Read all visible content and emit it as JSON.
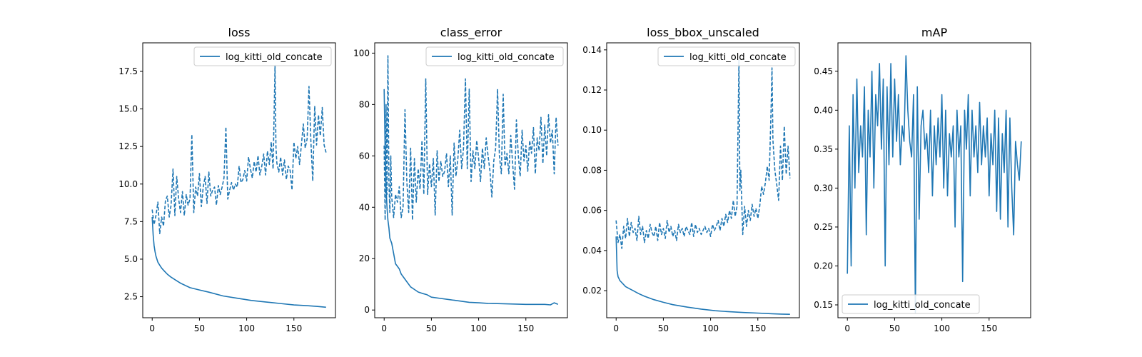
{
  "chart_data": [
    {
      "type": "line",
      "title": "loss",
      "xlabel": "",
      "ylabel": "",
      "xlim": [
        -10,
        194
      ],
      "ylim": [
        1.1,
        19.4
      ],
      "xticks": [
        0,
        50,
        100,
        150
      ],
      "yticks": [
        2.5,
        5.0,
        7.5,
        10.0,
        12.5,
        15.0,
        17.5
      ],
      "ytick_labels": [
        "2.5",
        "5.0",
        "7.5",
        "10.0",
        "12.5",
        "15.0",
        "17.5"
      ],
      "legend": {
        "placement": "top-right",
        "entries": [
          "log_kitti_old_concate"
        ]
      },
      "grid": false,
      "series": [
        {
          "name": "log_kitti_old_concate",
          "style": "solid",
          "x": [
            0,
            1,
            2,
            3,
            4,
            6,
            8,
            10,
            13,
            16,
            20,
            25,
            30,
            40,
            50,
            60,
            75,
            90,
            105,
            120,
            135,
            150,
            165,
            175,
            184
          ],
          "values": [
            7.8,
            6.6,
            5.9,
            5.5,
            5.2,
            4.8,
            4.6,
            4.4,
            4.2,
            4.0,
            3.8,
            3.6,
            3.4,
            3.1,
            2.95,
            2.8,
            2.55,
            2.4,
            2.25,
            2.15,
            2.05,
            1.95,
            1.9,
            1.85,
            1.8
          ]
        },
        {
          "style": "dashed",
          "x": [
            0,
            2,
            4,
            6,
            8,
            10,
            12,
            14,
            16,
            18,
            20,
            22,
            24,
            26,
            28,
            30,
            32,
            34,
            36,
            38,
            40,
            42,
            44,
            46,
            48,
            50,
            52,
            54,
            56,
            58,
            60,
            62,
            64,
            66,
            68,
            70,
            72,
            74,
            76,
            78,
            80,
            82,
            84,
            86,
            88,
            90,
            92,
            94,
            96,
            98,
            100,
            102,
            104,
            106,
            108,
            110,
            112,
            114,
            116,
            118,
            120,
            122,
            124,
            126,
            128,
            130,
            131,
            132,
            134,
            136,
            138,
            140,
            142,
            144,
            146,
            148,
            150,
            152,
            154,
            156,
            158,
            160,
            162,
            164,
            166,
            168,
            170,
            172,
            174,
            176,
            178,
            180,
            182,
            184
          ],
          "values": [
            8.3,
            7.3,
            7.9,
            8.8,
            6.7,
            7.8,
            7.2,
            8.9,
            9.2,
            7.8,
            8.6,
            11.0,
            7.9,
            10.5,
            9.0,
            8.1,
            9.5,
            7.9,
            9.3,
            8.6,
            9.0,
            13.3,
            8.1,
            9.8,
            9.2,
            10.7,
            8.5,
            9.8,
            10.5,
            8.7,
            10.8,
            9.2,
            9.6,
            9.8,
            8.6,
            9.9,
            9.3,
            9.8,
            10.4,
            13.8,
            9.0,
            9.6,
            10.1,
            9.6,
            10.0,
            9.8,
            11.2,
            10.1,
            10.3,
            10.9,
            10.2,
            11.8,
            11.0,
            10.4,
            11.5,
            10.8,
            11.9,
            10.6,
            11.2,
            12.0,
            10.6,
            12.2,
            11.3,
            12.8,
            11.0,
            17.9,
            12.5,
            11.4,
            10.8,
            11.8,
            10.6,
            11.6,
            10.3,
            11.2,
            10.9,
            9.6,
            12.8,
            11.7,
            12.5,
            11.3,
            12.7,
            14.0,
            12.4,
            13.0,
            16.5,
            12.8,
            10.2,
            15.2,
            12.6,
            14.6,
            13.2,
            15.1,
            12.6,
            12.1
          ]
        }
      ]
    },
    {
      "type": "line",
      "title": "class_error",
      "xlabel": "",
      "ylabel": "",
      "xlim": [
        -10,
        194
      ],
      "ylim": [
        -3,
        104
      ],
      "xticks": [
        0,
        50,
        100,
        150
      ],
      "yticks": [
        0,
        20,
        40,
        60,
        80,
        100
      ],
      "ytick_labels": [
        "0",
        "20",
        "40",
        "60",
        "80",
        "100"
      ],
      "legend": {
        "placement": "top-right",
        "entries": [
          "log_kitti_old_concate"
        ]
      },
      "grid": false,
      "series": [
        {
          "name": "log_kitti_old_concate",
          "style": "solid",
          "x": [
            0,
            1,
            2,
            3,
            4,
            5,
            6,
            8,
            10,
            12,
            14,
            16,
            18,
            20,
            24,
            28,
            32,
            36,
            40,
            45,
            50,
            60,
            70,
            80,
            90,
            100,
            110,
            120,
            130,
            140,
            150,
            160,
            170,
            176,
            180,
            184
          ],
          "values": [
            86,
            62,
            48,
            40,
            35,
            32,
            28,
            26,
            22,
            18,
            17,
            16,
            14,
            13,
            11,
            9,
            8,
            7,
            6.5,
            6,
            5,
            4.5,
            4,
            3.5,
            3,
            2.8,
            2.6,
            2.5,
            2.4,
            2.3,
            2.2,
            2.2,
            2.2,
            2.0,
            2.8,
            2.2
          ]
        },
        {
          "style": "dashed",
          "x": [
            0,
            1,
            2,
            3,
            4,
            5,
            6,
            7,
            8,
            9,
            10,
            12,
            14,
            16,
            18,
            20,
            22,
            24,
            26,
            28,
            30,
            32,
            34,
            36,
            38,
            40,
            42,
            44,
            46,
            48,
            50,
            52,
            54,
            56,
            58,
            60,
            62,
            64,
            66,
            68,
            70,
            72,
            74,
            76,
            78,
            80,
            82,
            84,
            86,
            88,
            90,
            92,
            94,
            96,
            98,
            100,
            102,
            104,
            106,
            108,
            110,
            112,
            114,
            116,
            118,
            120,
            122,
            124,
            126,
            128,
            130,
            132,
            134,
            136,
            138,
            140,
            142,
            144,
            146,
            148,
            150,
            152,
            154,
            156,
            158,
            160,
            162,
            164,
            166,
            168,
            170,
            172,
            174,
            176,
            178,
            180,
            182,
            184
          ],
          "values": [
            64,
            35,
            80,
            45,
            99,
            50,
            38,
            60,
            44,
            40,
            36,
            45,
            42,
            48,
            36,
            40,
            78,
            50,
            38,
            63,
            35,
            59,
            42,
            55,
            47,
            66,
            45,
            90,
            45,
            57,
            48,
            59,
            37,
            62,
            50,
            58,
            52,
            54,
            61,
            48,
            60,
            37,
            65,
            52,
            59,
            70,
            55,
            63,
            90,
            55,
            86,
            50,
            62,
            55,
            66,
            59,
            50,
            63,
            55,
            67,
            60,
            54,
            44,
            58,
            63,
            86,
            60,
            53,
            84,
            56,
            61,
            53,
            68,
            57,
            47,
            74,
            60,
            52,
            70,
            58,
            64,
            54,
            66,
            61,
            71,
            53,
            67,
            62,
            75,
            57,
            72,
            60,
            76,
            65,
            70,
            53,
            75,
            64
          ]
        }
      ]
    },
    {
      "type": "line",
      "title": "loss_bbox_unscaled",
      "xlabel": "",
      "ylabel": "",
      "xlim": [
        -10,
        194
      ],
      "ylim": [
        0.0065,
        0.1435
      ],
      "xticks": [
        0,
        50,
        100,
        150
      ],
      "yticks": [
        0.02,
        0.04,
        0.06,
        0.08,
        0.1,
        0.12,
        0.14
      ],
      "ytick_labels": [
        "0.02",
        "0.04",
        "0.06",
        "0.08",
        "0.10",
        "0.12",
        "0.14"
      ],
      "legend": {
        "placement": "top-right",
        "entries": [
          "log_kitti_old_concate"
        ]
      },
      "grid": false,
      "series": [
        {
          "name": "log_kitti_old_concate",
          "style": "solid",
          "x": [
            0,
            1,
            2,
            3,
            4,
            6,
            8,
            10,
            14,
            18,
            24,
            30,
            40,
            50,
            60,
            75,
            90,
            105,
            120,
            135,
            150,
            165,
            175,
            184
          ],
          "values": [
            0.047,
            0.03,
            0.027,
            0.026,
            0.025,
            0.024,
            0.023,
            0.022,
            0.021,
            0.02,
            0.0185,
            0.0172,
            0.0155,
            0.0142,
            0.013,
            0.0118,
            0.0108,
            0.01,
            0.0095,
            0.0091,
            0.0088,
            0.0085,
            0.0083,
            0.0082
          ]
        },
        {
          "style": "dashed",
          "x": [
            0,
            2,
            4,
            6,
            8,
            10,
            12,
            14,
            16,
            18,
            20,
            22,
            24,
            26,
            28,
            30,
            32,
            34,
            36,
            38,
            40,
            42,
            44,
            46,
            48,
            50,
            52,
            54,
            56,
            58,
            60,
            62,
            64,
            66,
            68,
            70,
            72,
            74,
            76,
            78,
            80,
            82,
            84,
            86,
            88,
            90,
            92,
            94,
            96,
            98,
            100,
            102,
            104,
            106,
            108,
            110,
            112,
            114,
            116,
            118,
            120,
            122,
            124,
            126,
            128,
            130,
            131,
            132,
            134,
            136,
            138,
            140,
            142,
            144,
            146,
            148,
            150,
            152,
            154,
            156,
            158,
            160,
            162,
            164,
            165,
            166,
            168,
            170,
            172,
            174,
            176,
            178,
            180,
            182,
            184
          ],
          "values": [
            0.055,
            0.044,
            0.048,
            0.041,
            0.052,
            0.046,
            0.056,
            0.047,
            0.054,
            0.049,
            0.051,
            0.045,
            0.057,
            0.048,
            0.052,
            0.044,
            0.05,
            0.046,
            0.053,
            0.049,
            0.047,
            0.052,
            0.045,
            0.054,
            0.048,
            0.051,
            0.046,
            0.055,
            0.049,
            0.052,
            0.047,
            0.05,
            0.045,
            0.053,
            0.049,
            0.051,
            0.047,
            0.052,
            0.05,
            0.048,
            0.054,
            0.047,
            0.053,
            0.049,
            0.051,
            0.048,
            0.05,
            0.052,
            0.049,
            0.051,
            0.047,
            0.053,
            0.05,
            0.052,
            0.055,
            0.05,
            0.056,
            0.052,
            0.058,
            0.054,
            0.06,
            0.056,
            0.065,
            0.057,
            0.062,
            0.135,
            0.07,
            0.08,
            0.048,
            0.062,
            0.052,
            0.06,
            0.055,
            0.063,
            0.057,
            0.061,
            0.056,
            0.062,
            0.072,
            0.068,
            0.074,
            0.082,
            0.075,
            0.11,
            0.131,
            0.095,
            0.08,
            0.073,
            0.065,
            0.092,
            0.075,
            0.102,
            0.078,
            0.092,
            0.076
          ]
        }
      ]
    },
    {
      "type": "line",
      "title": "mAP",
      "xlabel": "",
      "ylabel": "",
      "xlim": [
        -10,
        194
      ],
      "ylim": [
        0.1335,
        0.4865
      ],
      "xticks": [
        0,
        50,
        100,
        150
      ],
      "yticks": [
        0.15,
        0.2,
        0.25,
        0.3,
        0.35,
        0.4,
        0.45
      ],
      "ytick_labels": [
        "0.15",
        "0.20",
        "0.25",
        "0.30",
        "0.35",
        "0.40",
        "0.45"
      ],
      "legend": {
        "placement": "bottom-left",
        "entries": [
          "log_kitti_old_concate"
        ]
      },
      "grid": false,
      "series": [
        {
          "name": "log_kitti_old_concate",
          "style": "solid",
          "x": [
            0,
            2,
            4,
            6,
            8,
            10,
            12,
            14,
            16,
            18,
            20,
            22,
            24,
            26,
            28,
            30,
            32,
            34,
            36,
            38,
            40,
            42,
            44,
            46,
            48,
            50,
            52,
            54,
            56,
            58,
            60,
            62,
            64,
            66,
            68,
            70,
            72,
            74,
            76,
            78,
            80,
            82,
            84,
            86,
            88,
            90,
            92,
            94,
            96,
            98,
            100,
            102,
            104,
            106,
            108,
            110,
            112,
            114,
            116,
            118,
            120,
            122,
            124,
            126,
            128,
            130,
            132,
            134,
            136,
            138,
            140,
            142,
            144,
            146,
            148,
            150,
            152,
            154,
            156,
            158,
            160,
            162,
            164,
            166,
            168,
            170,
            172,
            174,
            176,
            178,
            180,
            182,
            184
          ],
          "values": [
            0.19,
            0.38,
            0.2,
            0.42,
            0.3,
            0.44,
            0.32,
            0.38,
            0.34,
            0.43,
            0.24,
            0.4,
            0.34,
            0.45,
            0.3,
            0.42,
            0.38,
            0.46,
            0.35,
            0.44,
            0.2,
            0.43,
            0.33,
            0.46,
            0.34,
            0.44,
            0.36,
            0.42,
            0.33,
            0.38,
            0.36,
            0.47,
            0.4,
            0.36,
            0.34,
            0.42,
            0.14,
            0.43,
            0.26,
            0.38,
            0.4,
            0.35,
            0.37,
            0.32,
            0.4,
            0.29,
            0.38,
            0.33,
            0.39,
            0.34,
            0.42,
            0.3,
            0.4,
            0.29,
            0.37,
            0.34,
            0.38,
            0.25,
            0.4,
            0.34,
            0.38,
            0.18,
            0.4,
            0.35,
            0.42,
            0.29,
            0.4,
            0.34,
            0.38,
            0.32,
            0.41,
            0.33,
            0.38,
            0.34,
            0.39,
            0.29,
            0.37,
            0.33,
            0.4,
            0.27,
            0.39,
            0.26,
            0.37,
            0.32,
            0.4,
            0.25,
            0.39,
            0.3,
            0.24,
            0.36,
            0.33,
            0.31,
            0.36
          ]
        }
      ]
    }
  ],
  "colors": {
    "line": "#1f77b4",
    "axes": "#000000",
    "legend_border": "#cccccc"
  }
}
